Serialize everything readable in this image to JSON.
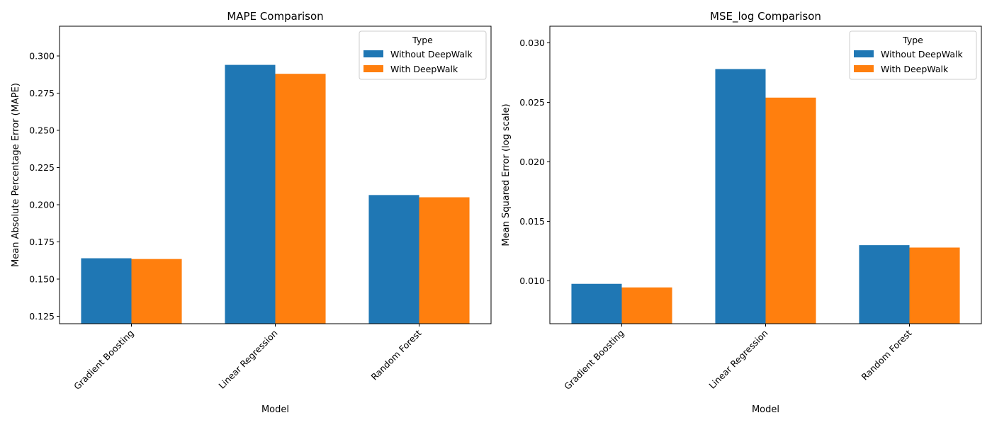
{
  "colors": {
    "without": "#1f77b4",
    "with": "#ff7f0e"
  },
  "chart_data": [
    {
      "type": "bar",
      "title": "MAPE Comparison",
      "xlabel": "Model",
      "ylabel": "Mean Absolute Percentage Error (MAPE)",
      "categories": [
        "Gradient Boosting",
        "Linear Regression",
        "Random Forest"
      ],
      "series": [
        {
          "name": "Without DeepWalk",
          "values": [
            0.164,
            0.294,
            0.2065
          ]
        },
        {
          "name": "With DeepWalk",
          "values": [
            0.1635,
            0.288,
            0.205
          ]
        }
      ],
      "ylim": [
        0.12,
        0.32
      ],
      "yticks": [
        0.125,
        0.15,
        0.175,
        0.2,
        0.225,
        0.25,
        0.275,
        0.3
      ],
      "ytick_labels": [
        "0.125",
        "0.150",
        "0.175",
        "0.200",
        "0.225",
        "0.250",
        "0.275",
        "0.300"
      ],
      "legend": {
        "title": "Type",
        "location": "top-right"
      },
      "grid": false
    },
    {
      "type": "bar",
      "title": "MSE_log Comparison",
      "xlabel": "Model",
      "ylabel": "Mean Squared Error (log scale)",
      "categories": [
        "Gradient Boosting",
        "Linear Regression",
        "Random Forest"
      ],
      "series": [
        {
          "name": "Without DeepWalk",
          "values": [
            0.00975,
            0.0278,
            0.013
          ]
        },
        {
          "name": "With DeepWalk",
          "values": [
            0.00945,
            0.0254,
            0.0128
          ]
        }
      ],
      "ylim": [
        0.0064,
        0.0314
      ],
      "yticks": [
        0.01,
        0.015,
        0.02,
        0.025,
        0.03
      ],
      "ytick_labels": [
        "0.010",
        "0.015",
        "0.020",
        "0.025",
        "0.030"
      ],
      "legend": {
        "title": "Type",
        "location": "top-right"
      },
      "grid": false
    }
  ]
}
